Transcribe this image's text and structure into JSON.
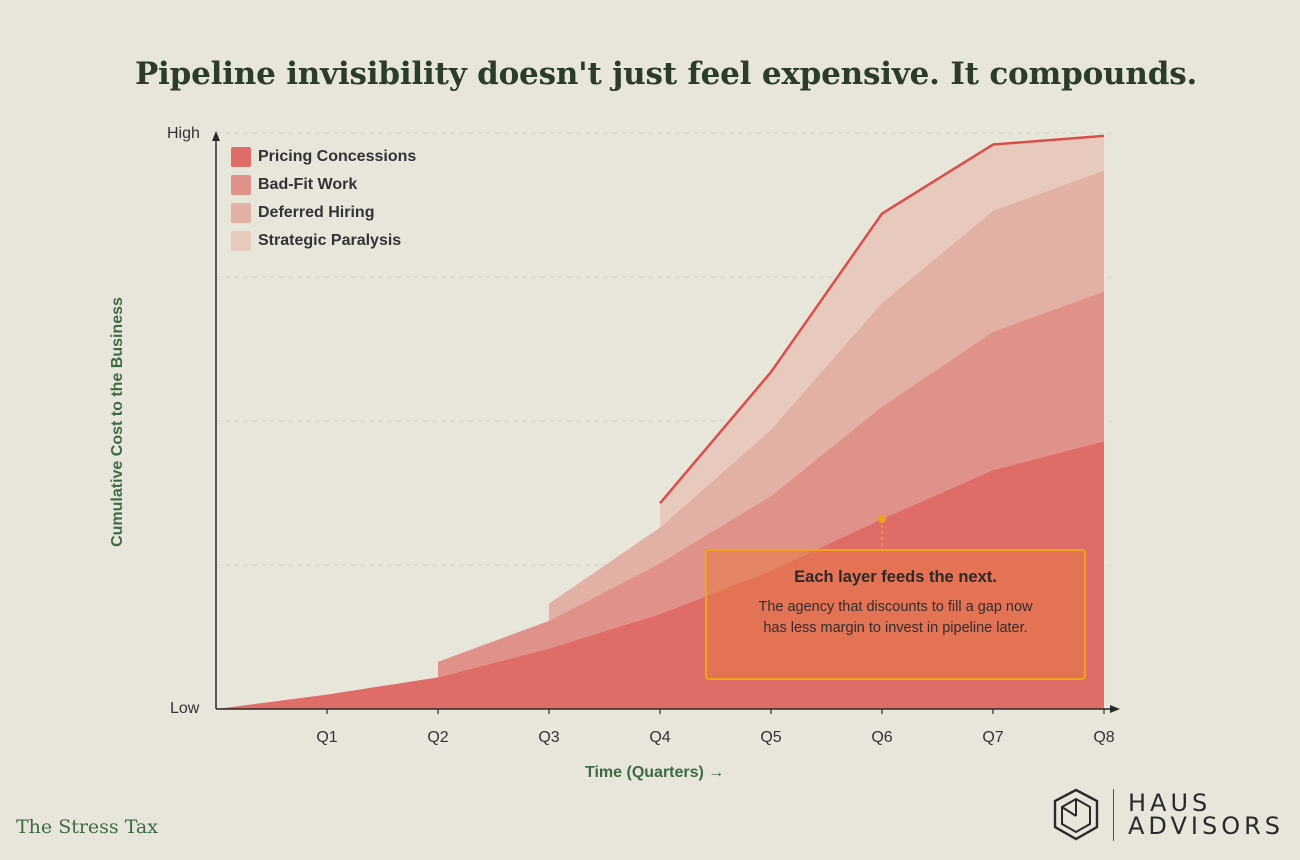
{
  "title": "Pipeline invisibility doesn't just feel expensive. It compounds.",
  "brand": "The Stress Tax",
  "logo": {
    "line1": "HAUS",
    "line2": "ADVISORS"
  },
  "callout": {
    "title": "Each layer feeds the next.",
    "body": "The agency that discounts to fill a gap now has less margin to invest in pipeline later."
  },
  "chart_data": {
    "type": "area",
    "stacked": true,
    "title": "Pipeline invisibility doesn't just feel expensive. It compounds.",
    "xlabel": "Time (Quarters) →",
    "ylabel": "Cumulative Cost to the Business",
    "y_tick_labels": {
      "low": "Low",
      "high": "High"
    },
    "ylim": [
      0,
      100
    ],
    "x": [
      0,
      1,
      2,
      3,
      4,
      5,
      6,
      7,
      8
    ],
    "categories": [
      "",
      "Q1",
      "Q2",
      "Q3",
      "Q4",
      "Q5",
      "Q6",
      "Q7",
      "Q8"
    ],
    "legend_position": "top-left",
    "series": [
      {
        "name": "Pricing Concessions",
        "color": "#e06c68",
        "starts_at": "Q0",
        "values": [
          0,
          2.5,
          5.5,
          10.5,
          16.5,
          24,
          33,
          41.5,
          46.5
        ]
      },
      {
        "name": "Bad-Fit Work",
        "color": "#e0928a",
        "starts_at": "Q2",
        "values": [
          0,
          0,
          2.7,
          4.8,
          8.8,
          13,
          19.5,
          24,
          26
        ]
      },
      {
        "name": "Deferred Hiring",
        "color": "#e3b0a6",
        "starts_at": "Q3",
        "values": [
          0,
          0,
          0,
          3,
          6.2,
          11.5,
          18,
          21,
          21
        ]
      },
      {
        "name": "Strategic Paralysis",
        "color": "#e8c9bd",
        "starts_at": "Q4",
        "values": [
          0,
          0,
          0,
          0,
          4.2,
          10,
          15.5,
          11.5,
          6
        ]
      }
    ],
    "outline_color": "#d94f4a",
    "annotation": {
      "at_quarter": "Q6",
      "series": "Pricing Concessions",
      "title": "Each layer feeds the next.",
      "text": "The agency that discounts to fill a gap now has less margin to invest in pipeline later."
    }
  }
}
